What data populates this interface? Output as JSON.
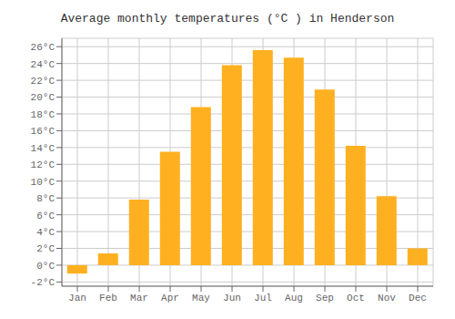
{
  "chart_data": {
    "type": "bar",
    "title": "Average monthly temperatures (°C ) in Henderson",
    "categories": [
      "Jan",
      "Feb",
      "Mar",
      "Apr",
      "May",
      "Jun",
      "Jul",
      "Aug",
      "Sep",
      "Oct",
      "Nov",
      "Dec"
    ],
    "values": [
      -1.0,
      1.4,
      7.8,
      13.5,
      18.8,
      23.8,
      25.6,
      24.7,
      20.9,
      14.2,
      8.2,
      2.0
    ],
    "color": "#FFB020",
    "ylim": [
      -2.5,
      27
    ],
    "yticks": [
      {
        "value": -2,
        "label": "-2°C"
      },
      {
        "value": 0,
        "label": "0°C"
      },
      {
        "value": 2,
        "label": "2°C"
      },
      {
        "value": 4,
        "label": "4°C"
      },
      {
        "value": 6,
        "label": "6°C"
      },
      {
        "value": 8,
        "label": "8°C"
      },
      {
        "value": 10,
        "label": "10°C"
      },
      {
        "value": 12,
        "label": "12°C"
      },
      {
        "value": 14,
        "label": "14°C"
      },
      {
        "value": 16,
        "label": "16°C"
      },
      {
        "value": 18,
        "label": "18°C"
      },
      {
        "value": 20,
        "label": "20°C"
      },
      {
        "value": 22,
        "label": "22°C"
      },
      {
        "value": 24,
        "label": "24°C"
      },
      {
        "value": 26,
        "label": "26°C"
      }
    ],
    "grid": true
  }
}
